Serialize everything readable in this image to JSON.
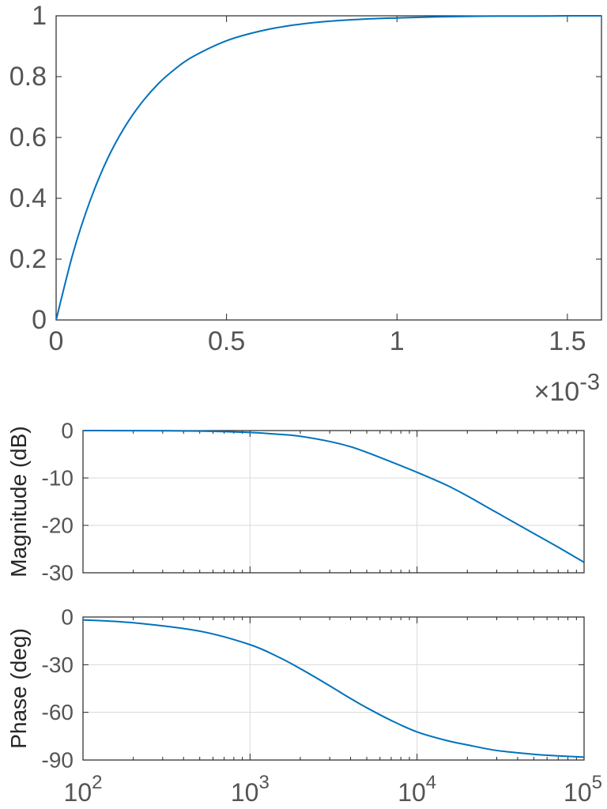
{
  "chart_data": [
    {
      "type": "line",
      "title": "",
      "xlabel": "",
      "ylabel": "",
      "xlim": [
        0,
        0.0016
      ],
      "ylim": [
        0,
        1
      ],
      "x_exponent_label": "×10",
      "x_exponent_power": "-3",
      "x_ticks": [
        0,
        0.0005,
        0.001,
        0.0015
      ],
      "x_tick_labels": [
        "0",
        "0.5",
        "1",
        "1.5"
      ],
      "y_ticks": [
        0,
        0.2,
        0.4,
        0.6,
        0.8,
        1
      ],
      "y_tick_labels": [
        "0",
        "0.2",
        "0.4",
        "0.6",
        "0.8",
        "1"
      ],
      "grid": false,
      "series": [
        {
          "x": [
            0,
            5e-05,
            0.0001,
            0.00015,
            0.0002,
            0.00025,
            0.0003,
            0.00035,
            0.0004,
            0.0005,
            0.0006,
            0.0007,
            0.0008,
            0.0009,
            0.001,
            0.0011,
            0.0012,
            0.0013,
            0.0014,
            0.0015,
            0.0016
          ],
          "values": [
            0,
            0.221,
            0.393,
            0.528,
            0.632,
            0.713,
            0.777,
            0.826,
            0.865,
            0.918,
            0.95,
            0.97,
            0.982,
            0.989,
            0.993,
            0.996,
            0.998,
            0.999,
            0.999,
            1.0,
            1.0
          ]
        }
      ],
      "colors": {
        "line": "#0072bd"
      }
    },
    {
      "type": "line",
      "title": "",
      "xlabel": "",
      "ylabel": "Magnitude (dB)",
      "xscale": "log",
      "xlim": [
        100,
        100000
      ],
      "ylim": [
        -30,
        0
      ],
      "y_ticks": [
        0,
        -10,
        -20,
        -30
      ],
      "y_tick_labels": [
        "0",
        "-10",
        "-20",
        "-30"
      ],
      "grid": true,
      "series": [
        {
          "x": [
            100,
            200,
            500,
            1000,
            1500,
            2000,
            3000,
            4000,
            5000,
            7000,
            10000,
            15000,
            20000,
            30000,
            50000,
            70000,
            100000
          ],
          "values": [
            0,
            -0.02,
            -0.1,
            -0.4,
            -0.8,
            -1.2,
            -2.3,
            -3.4,
            -4.6,
            -6.6,
            -8.8,
            -11.5,
            -13.8,
            -17.3,
            -21.7,
            -24.6,
            -27.8
          ]
        }
      ],
      "colors": {
        "line": "#0072bd"
      }
    },
    {
      "type": "line",
      "title": "",
      "xlabel": "",
      "ylabel": "Phase (deg)",
      "xscale": "log",
      "xlim": [
        100,
        100000
      ],
      "ylim": [
        -90,
        0
      ],
      "y_ticks": [
        0,
        -30,
        -60,
        -90
      ],
      "y_tick_labels": [
        "0",
        "-30",
        "-60",
        "-90"
      ],
      "x_ticks": [
        100,
        1000,
        10000,
        100000
      ],
      "x_tick_base": "10",
      "x_tick_powers": [
        "2",
        "3",
        "4",
        "5"
      ],
      "grid": true,
      "series": [
        {
          "x": [
            100,
            200,
            500,
            1000,
            1500,
            2000,
            3000,
            4000,
            5000,
            7000,
            10000,
            15000,
            20000,
            30000,
            50000,
            70000,
            100000
          ],
          "values": [
            -1.8,
            -3.6,
            -8.9,
            -17.4,
            -25.5,
            -32.5,
            -43.3,
            -51.3,
            -57.1,
            -65.1,
            -72.3,
            -77.7,
            -80.5,
            -84.0,
            -86.4,
            -87.4,
            -88.2
          ]
        }
      ],
      "colors": {
        "line": "#0072bd"
      }
    }
  ]
}
